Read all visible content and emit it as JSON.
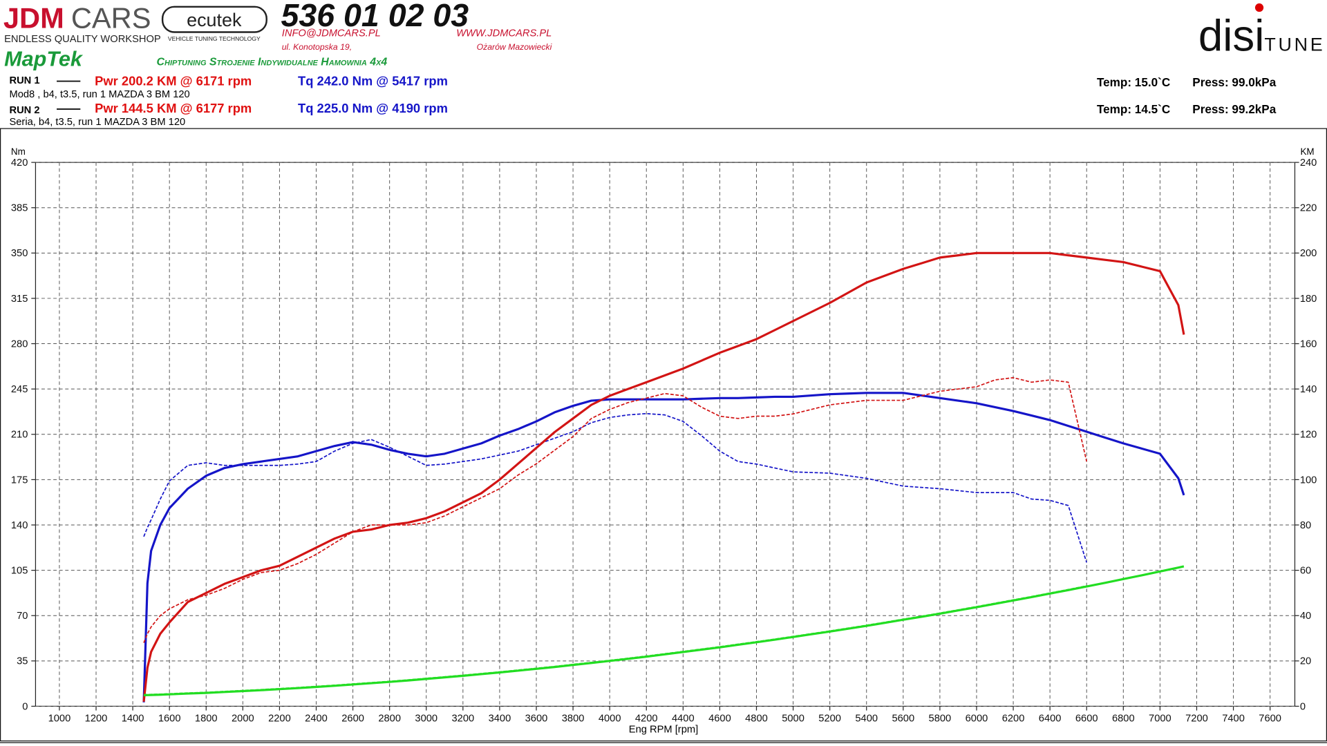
{
  "header": {
    "logo_left": [
      "JDM",
      "CARS"
    ],
    "logo_left_sub": "ENDLESS QUALITY WORKSHOP",
    "ecutek": "ecutek",
    "ecutek_sub": "VEHICLE TUNING TECHNOLOGY",
    "phone": "536 01 02 03",
    "email": "INFO@JDMCARS.PL",
    "www": "WWW.JDMCARS.PL",
    "street": "ul. Konotopska 19,",
    "city": "Ożarów Mazowiecki",
    "maptek": "MapTek",
    "services": "Chiptuning Strojenie Indywidualne Hamownia 4x4",
    "logo_right": [
      "disi",
      "TUNE"
    ]
  },
  "runs": [
    {
      "label": "RUN 1",
      "power": "Pwr  200.2 KM @ 6171 rpm",
      "torque": "Tq 242.0 Nm @ 5417 rpm",
      "description": "Mod8  , b4, t3.5, run 1 MAZDA 3 BM 120",
      "temp": "Temp: 15.0`C",
      "press": "Press: 99.0kPa"
    },
    {
      "label": "RUN 2",
      "power": "Pwr  144.5 KM @ 6177 rpm",
      "torque": "Tq 225.0 Nm @ 4190 rpm",
      "description": "Seria, b4, t3.5, run 1 MAZDA 3 BM 120",
      "temp": "Temp: 14.5`C",
      "press": "Press: 99.2kPa"
    }
  ],
  "chart_data": {
    "type": "line",
    "y_label": "Nm",
    "y2_label": "KM",
    "x_label": "Eng RPM [rpm]",
    "grid": true,
    "xlim": [
      870,
      7735
    ],
    "ylim": [
      0,
      420
    ],
    "y2lim": [
      0,
      240
    ],
    "xticks": [
      1000,
      1200,
      1400,
      1600,
      1800,
      2000,
      2200,
      2400,
      2600,
      2800,
      3000,
      3200,
      3400,
      3600,
      3800,
      4000,
      4200,
      4400,
      4600,
      4800,
      5000,
      5200,
      5400,
      5600,
      5800,
      6000,
      6200,
      6400,
      6600,
      6800,
      7000,
      7200,
      7400,
      7600
    ],
    "yticks": [
      0,
      35,
      70,
      105,
      140,
      175,
      210,
      245,
      280,
      315,
      350,
      385,
      420
    ],
    "y2ticks": [
      0,
      20,
      40,
      60,
      80,
      100,
      120,
      140,
      160,
      180,
      200,
      220,
      240
    ],
    "x": [
      1460,
      1480,
      1500,
      1550,
      1600,
      1700,
      1800,
      1900,
      2000,
      2100,
      2200,
      2300,
      2400,
      2500,
      2600,
      2700,
      2800,
      2900,
      3000,
      3100,
      3200,
      3300,
      3400,
      3500,
      3600,
      3700,
      3800,
      3900,
      4000,
      4100,
      4200,
      4300,
      4400,
      4500,
      4600,
      4700,
      4800,
      4900,
      5000,
      5100,
      5200,
      5300,
      5400,
      5500,
      5600,
      5700,
      5800,
      5900,
      6000,
      6100,
      6200,
      6300,
      6400,
      6500,
      6600,
      6700,
      6800,
      6900,
      7000,
      7100,
      7130
    ],
    "series": [
      {
        "color": "#1515c8",
        "style": "solid",
        "axis": "y",
        "values": [
          3,
          95,
          120,
          140,
          153,
          168,
          178,
          184,
          187,
          189,
          191,
          193,
          197,
          201,
          204,
          202,
          198,
          195,
          193,
          195,
          199,
          203,
          209,
          214,
          220,
          227,
          232,
          236,
          237,
          237,
          237,
          237,
          237,
          237.5,
          238,
          238,
          238.5,
          239,
          239,
          240,
          241,
          241.5,
          242,
          242,
          242,
          240,
          238,
          236,
          234,
          231,
          228,
          224.5,
          221,
          216.5,
          212,
          207.5,
          203,
          199,
          195,
          176,
          163
        ]
      },
      {
        "color": "#1515c8",
        "style": "dashed",
        "axis": "y",
        "values": [
          131,
          138,
          144,
          160,
          174,
          186,
          188,
          186,
          186,
          186,
          186,
          187,
          189,
          197,
          203,
          206,
          200,
          193,
          186,
          187,
          189,
          191,
          194,
          197,
          202,
          207,
          212,
          219,
          223,
          225,
          226,
          225,
          220,
          209,
          197,
          189,
          187,
          184,
          181,
          180.5,
          180,
          178,
          176,
          173,
          170,
          169,
          168,
          166.5,
          165,
          165,
          165,
          160,
          159,
          155,
          111,
          null,
          null,
          null,
          null,
          null,
          null
        ]
      },
      {
        "color": "#d21414",
        "style": "solid",
        "axis": "y2",
        "values": [
          2,
          17,
          24,
          32,
          37,
          46,
          50,
          54,
          57,
          60,
          62,
          66,
          70,
          74,
          77,
          78,
          80,
          81,
          83,
          86,
          90,
          94,
          100,
          107,
          114,
          121,
          127,
          133,
          137,
          140,
          143,
          146,
          149,
          152.5,
          156,
          159,
          162,
          166,
          170,
          174,
          178,
          182.5,
          187,
          190,
          193,
          195.5,
          198,
          199,
          200,
          200,
          200,
          200,
          200,
          199,
          198,
          197,
          196,
          194,
          192,
          177,
          164
        ]
      },
      {
        "color": "#d21414",
        "style": "dashed",
        "axis": "y2",
        "values": [
          28,
          32,
          35,
          40,
          43,
          47,
          49,
          52,
          56,
          59,
          60,
          63,
          67,
          72,
          77,
          80,
          80,
          80,
          81,
          84,
          88,
          92,
          96,
          102,
          107,
          113,
          119,
          127,
          131,
          134,
          136,
          138,
          137,
          132,
          128,
          127,
          128,
          128,
          129,
          131,
          133,
          134,
          135,
          135,
          135,
          137,
          139,
          140,
          141,
          144,
          145,
          143,
          144,
          143,
          108,
          null,
          null,
          null,
          null,
          null,
          null
        ]
      },
      {
        "color": "#22dd22",
        "style": "solid",
        "axis": "y",
        "values": [
          8.5,
          8.6,
          8.7,
          8.9,
          9.2,
          9.8,
          10.3,
          11.0,
          11.7,
          12.4,
          13.2,
          14.0,
          14.9,
          15.8,
          16.8,
          17.8,
          18.8,
          19.9,
          21.1,
          22.3,
          23.5,
          24.8,
          26.1,
          27.5,
          28.9,
          30.3,
          31.9,
          33.4,
          35.0,
          36.6,
          38.3,
          40.1,
          41.9,
          43.7,
          45.5,
          47.5,
          49.4,
          51.4,
          53.5,
          55.6,
          57.7,
          59.9,
          62.1,
          64.4,
          66.8,
          69.1,
          71.5,
          74.0,
          76.5,
          79.1,
          81.7,
          84.3,
          87.0,
          89.7,
          92.5,
          95.3,
          98.2,
          101.1,
          104.1,
          107.1,
          108.0
        ]
      },
      {
        "color": "#22dd22",
        "style": "dashed",
        "axis": "y",
        "values": [
          9,
          9.1,
          9.2,
          9.4,
          9.7,
          10.3,
          10.8,
          11.5,
          12.2,
          12.9,
          13.7,
          14.5,
          15.4,
          16.3,
          17.3,
          18.3,
          19.3,
          20.4,
          21.6,
          22.8,
          24,
          25.3,
          26.6,
          28,
          29.4,
          30.8,
          32.4,
          33.9,
          35.5,
          37.1,
          38.8,
          40.6,
          42.4,
          44.2,
          46,
          48,
          49.9,
          51.9,
          54,
          56.1,
          58.2,
          60.4,
          62.6,
          64.9,
          67.3,
          69.6,
          72,
          74.5,
          77,
          79.6,
          82.2,
          84.8,
          87.5,
          90.2,
          93,
          null,
          null,
          null,
          null,
          null,
          null
        ]
      }
    ]
  }
}
